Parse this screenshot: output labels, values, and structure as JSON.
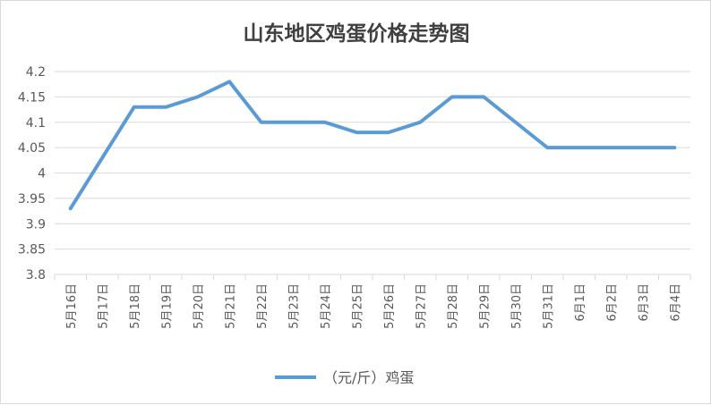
{
  "chart_data": {
    "type": "line",
    "title": "山东地区鸡蛋价格走势图",
    "xlabel": "",
    "ylabel": "",
    "categories": [
      "5月16日",
      "5月17日",
      "5月18日",
      "5月19日",
      "5月20日",
      "5月21日",
      "5月22日",
      "5月23日",
      "5月24日",
      "5月25日",
      "5月26日",
      "5月27日",
      "5月28日",
      "5月29日",
      "5月30日",
      "5月31日",
      "6月1日",
      "6月2日",
      "6月3日",
      "6月4日"
    ],
    "series": [
      {
        "name": "（元/斤）鸡蛋",
        "values": [
          3.93,
          4.03,
          4.13,
          4.13,
          4.15,
          4.18,
          4.1,
          4.1,
          4.1,
          4.08,
          4.08,
          4.1,
          4.15,
          4.15,
          4.1,
          4.05,
          4.05,
          4.05,
          4.05,
          4.05
        ],
        "color": "#5b9bd5"
      }
    ],
    "ylim": [
      3.8,
      4.2
    ],
    "yticks": [
      "3.8",
      "3.85",
      "3.9",
      "3.95",
      "4",
      "4.05",
      "4.1",
      "4.15",
      "4.2"
    ],
    "grid": true,
    "gridColor": "#d9d9d9",
    "legend": "bottom"
  }
}
